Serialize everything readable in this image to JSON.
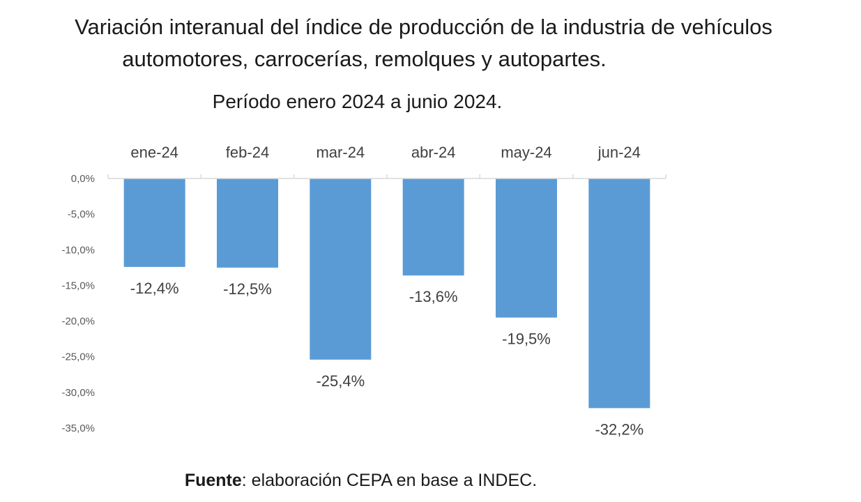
{
  "title_line1": "Variación interanual del índice de producción de la industria de vehículos",
  "title_line2": "automotores, carrocerías, remolques y autopartes.",
  "subtitle": "Período enero 2024 a junio 2024.",
  "source_label": "Fuente",
  "source_text": ": elaboración CEPA en base a INDEC.",
  "chart_data": {
    "type": "bar",
    "categories": [
      "ene-24",
      "feb-24",
      "mar-24",
      "abr-24",
      "may-24",
      "jun-24"
    ],
    "values": [
      -12.4,
      -12.5,
      -25.4,
      -13.6,
      -19.5,
      -32.2
    ],
    "value_labels": [
      "-12,4%",
      "-12,5%",
      "-25,4%",
      "-13,6%",
      "-19,5%",
      "-32,2%"
    ],
    "ylim": [
      -35,
      0
    ],
    "yticks": [
      0,
      -5,
      -10,
      -15,
      -20,
      -25,
      -30,
      -35
    ],
    "ytick_labels": [
      "0,0%",
      "-5,0%",
      "-10,0%",
      "-15,0%",
      "-20,0%",
      "-25,0%",
      "-30,0%",
      "-35,0%"
    ],
    "xlabel": "",
    "ylabel": "",
    "category_axis_position": "top",
    "grid": false,
    "bar_color": "#5b9bd5"
  }
}
